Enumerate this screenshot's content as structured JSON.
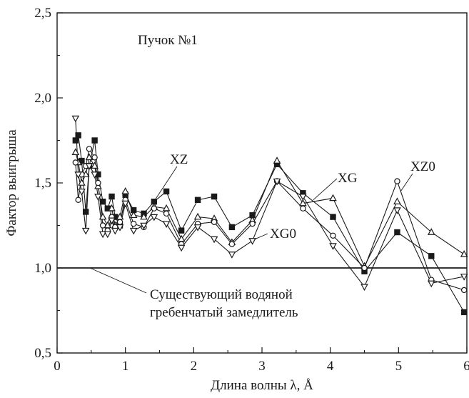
{
  "chart_data": {
    "type": "line",
    "xlabel": "Длина волны λ, Å",
    "ylabel": "Фактор выигрыша",
    "xlim": [
      0,
      6
    ],
    "ylim": [
      0.5,
      2.5
    ],
    "x_ticks": [
      "0",
      "1",
      "2",
      "3",
      "4",
      "5",
      "6"
    ],
    "y_ticks": [
      "0,5",
      "1,0",
      "1,5",
      "2,0",
      "2,5"
    ],
    "grid": false,
    "reference_line": {
      "y": 1.0,
      "label_line1": "Существующий водяной",
      "label_line2": "гребенчатый замедлитель"
    },
    "annotation": "Пучок №1",
    "series": [
      {
        "name": "XZ",
        "marker": "filled-square",
        "x": [
          0.27,
          0.31,
          0.36,
          0.42,
          0.47,
          0.55,
          0.6,
          0.67,
          0.74,
          0.8,
          0.85,
          0.92,
          1.0,
          1.12,
          1.27,
          1.42,
          1.6,
          1.82,
          2.06,
          2.3,
          2.56,
          2.86,
          3.22,
          3.6,
          4.04,
          4.5,
          4.98,
          5.48,
          5.96
        ],
        "y": [
          1.75,
          1.78,
          1.63,
          1.33,
          1.6,
          1.75,
          1.55,
          1.39,
          1.35,
          1.42,
          1.3,
          1.25,
          1.43,
          1.34,
          1.32,
          1.39,
          1.45,
          1.22,
          1.4,
          1.42,
          1.24,
          1.31,
          1.61,
          1.44,
          1.3,
          0.98,
          1.21,
          1.07,
          0.74
        ]
      },
      {
        "name": "XG",
        "marker": "open-triangle-up",
        "x": [
          0.27,
          0.31,
          0.36,
          0.42,
          0.47,
          0.55,
          0.6,
          0.67,
          0.74,
          0.8,
          0.85,
          0.92,
          1.0,
          1.12,
          1.27,
          1.42,
          1.6,
          1.82,
          2.06,
          2.3,
          2.56,
          2.86,
          3.22,
          3.6,
          4.04,
          4.5,
          4.98,
          5.48,
          5.96
        ],
        "y": [
          1.68,
          1.62,
          1.5,
          1.55,
          1.65,
          1.6,
          1.48,
          1.3,
          1.25,
          1.35,
          1.25,
          1.3,
          1.45,
          1.31,
          1.3,
          1.36,
          1.35,
          1.17,
          1.3,
          1.29,
          1.15,
          1.28,
          1.63,
          1.38,
          1.41,
          1.01,
          1.39,
          1.21,
          1.08
        ]
      },
      {
        "name": "XZ0",
        "marker": "open-circle",
        "x": [
          0.27,
          0.31,
          0.36,
          0.42,
          0.47,
          0.55,
          0.6,
          0.67,
          0.74,
          0.8,
          0.85,
          0.92,
          1.0,
          1.12,
          1.27,
          1.42,
          1.6,
          1.82,
          2.06,
          2.3,
          2.56,
          2.86,
          3.22,
          3.6,
          4.04,
          4.5,
          4.98,
          5.48,
          5.96
        ],
        "y": [
          1.62,
          1.4,
          1.55,
          1.6,
          1.7,
          1.65,
          1.5,
          1.25,
          1.22,
          1.3,
          1.24,
          1.27,
          1.4,
          1.26,
          1.24,
          1.35,
          1.32,
          1.14,
          1.26,
          1.27,
          1.14,
          1.26,
          1.51,
          1.35,
          1.19,
          1.0,
          1.51,
          0.93,
          0.87
        ]
      },
      {
        "name": "XG0",
        "marker": "open-triangle-down",
        "x": [
          0.27,
          0.31,
          0.36,
          0.42,
          0.47,
          0.55,
          0.6,
          0.67,
          0.74,
          0.8,
          0.85,
          0.92,
          1.0,
          1.12,
          1.27,
          1.42,
          1.6,
          1.82,
          2.06,
          2.3,
          2.56,
          2.86,
          3.22,
          3.6,
          4.04,
          4.5,
          4.98,
          5.48,
          5.96
        ],
        "y": [
          1.88,
          1.55,
          1.45,
          1.22,
          1.6,
          1.55,
          1.42,
          1.2,
          1.2,
          1.28,
          1.22,
          1.24,
          1.38,
          1.22,
          1.25,
          1.3,
          1.26,
          1.12,
          1.24,
          1.17,
          1.08,
          1.16,
          1.51,
          1.42,
          1.13,
          0.89,
          1.34,
          0.91,
          0.95
        ]
      }
    ]
  }
}
